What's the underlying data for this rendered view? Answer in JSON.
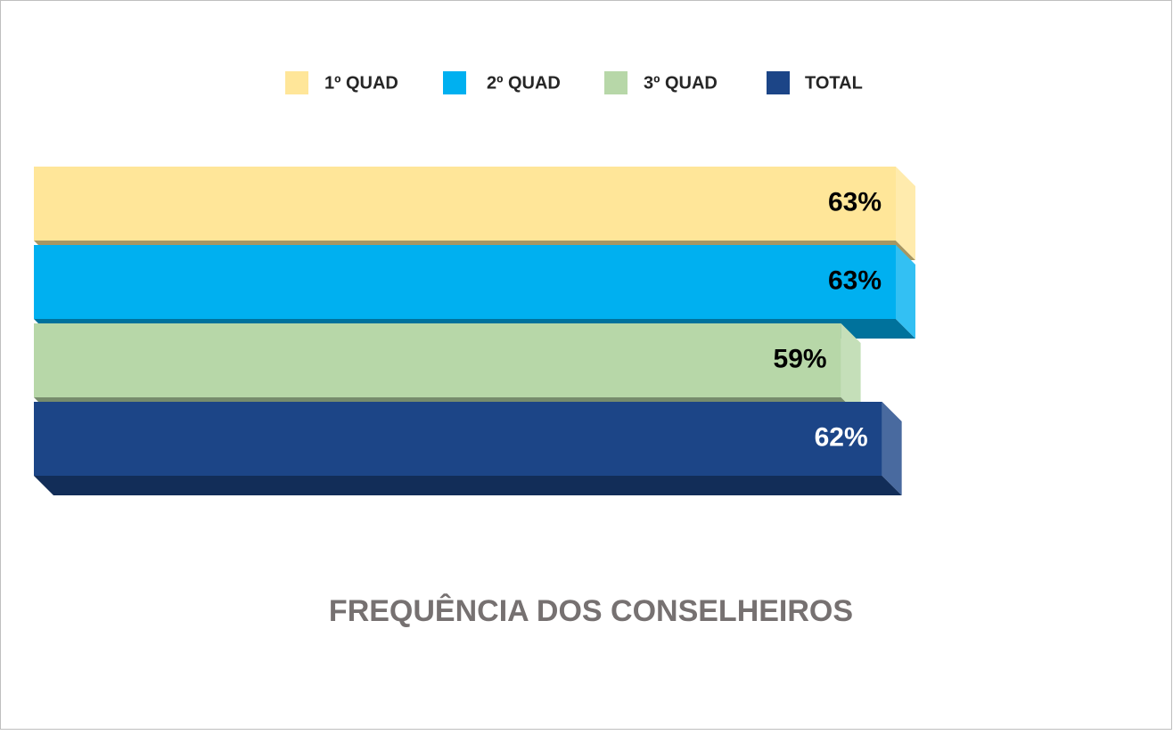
{
  "chart_data": {
    "type": "bar3d-horizontal",
    "title": "FREQUÊNCIA DOS CONSELHEIROS",
    "categories": [
      null
    ],
    "series": [
      {
        "name": "1º QUAD",
        "color": "#FFE699",
        "values": [
          63
        ],
        "value_labels": [
          "63%"
        ]
      },
      {
        "name": "2º QUAD",
        "color": "#00B0F0",
        "values": [
          63
        ],
        "value_labels": [
          "63%"
        ]
      },
      {
        "name": "3º QUAD",
        "color": "#B7D7A8",
        "values": [
          59
        ],
        "value_labels": [
          "59%"
        ]
      },
      {
        "name": "TOTAL",
        "color": "#1C4587",
        "values": [
          62
        ],
        "value_labels": [
          "62%"
        ]
      }
    ],
    "legend": "top"
  }
}
